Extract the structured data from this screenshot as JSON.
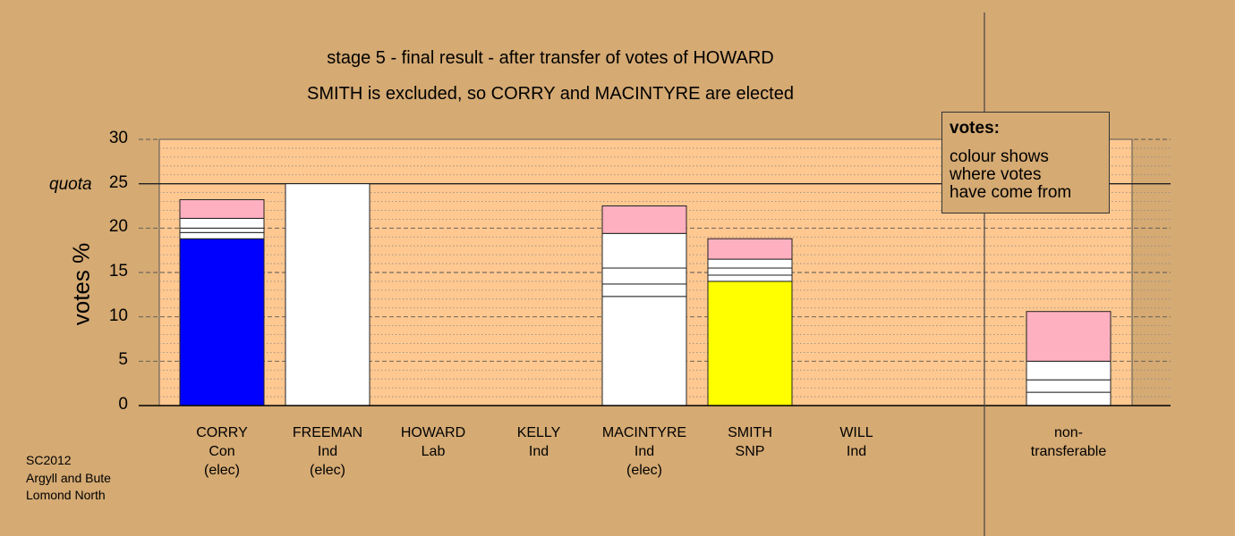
{
  "chart_data": {
    "type": "bar",
    "title": "stage 5 - final result - after transfer of votes of HOWARD",
    "subtitle": "SMITH is excluded, so CORRY and MACINTYRE are elected",
    "ylabel": "votes %",
    "ylim": [
      0,
      30
    ],
    "yticks": [
      "0",
      "5",
      "10",
      "15",
      "20",
      "25",
      "30"
    ],
    "quota": {
      "label": "quota",
      "value": 25
    },
    "grid": true,
    "categories": [
      {
        "name": "CORRY",
        "party": "Con",
        "status": "(elec)"
      },
      {
        "name": "FREEMAN",
        "party": "Ind",
        "status": "(elec)"
      },
      {
        "name": "HOWARD",
        "party": "Lab",
        "status": ""
      },
      {
        "name": "KELLY",
        "party": "Ind",
        "status": ""
      },
      {
        "name": "MACINTYRE",
        "party": "Ind",
        "status": "(elec)"
      },
      {
        "name": "SMITH",
        "party": "SNP",
        "status": ""
      },
      {
        "name": "WILL",
        "party": "Ind",
        "status": ""
      },
      {
        "name": "non-",
        "party": "transferable",
        "status": ""
      }
    ],
    "stacks": [
      [
        {
          "value": 18.8,
          "color": "#0000ff"
        },
        {
          "value": 0.7,
          "color": "#ffffff"
        },
        {
          "value": 0.5,
          "color": "#ffffff"
        },
        {
          "value": 1.1,
          "color": "#ffffff"
        },
        {
          "value": 2.1,
          "color": "#ffb0c0"
        }
      ],
      [
        {
          "value": 25.0,
          "color": "#ffffff"
        }
      ],
      [],
      [],
      [
        {
          "value": 12.3,
          "color": "#ffffff"
        },
        {
          "value": 1.4,
          "color": "#ffffff"
        },
        {
          "value": 1.8,
          "color": "#ffffff"
        },
        {
          "value": 3.9,
          "color": "#ffffff"
        },
        {
          "value": 3.1,
          "color": "#ffb0c0"
        }
      ],
      [
        {
          "value": 14.0,
          "color": "#ffff00"
        },
        {
          "value": 0.7,
          "color": "#ffffff"
        },
        {
          "value": 0.8,
          "color": "#ffffff"
        },
        {
          "value": 1.0,
          "color": "#ffffff"
        },
        {
          "value": 2.3,
          "color": "#ffb0c0"
        }
      ],
      [],
      [
        {
          "value": 1.5,
          "color": "#ffffff"
        },
        {
          "value": 1.4,
          "color": "#ffffff"
        },
        {
          "value": 2.1,
          "color": "#ffffff"
        },
        {
          "value": 5.6,
          "color": "#ffb0c0"
        }
      ]
    ],
    "colors": {
      "background": "#d5aa73",
      "plot_fill": "#ffc890",
      "text": "#000000"
    }
  },
  "legend": {
    "title": "votes:",
    "line1": "colour shows",
    "line2": "where votes",
    "line3": "have come from"
  },
  "footer": {
    "line1": "SC2012",
    "line2": "Argyll and Bute",
    "line3": "Lomond North"
  }
}
